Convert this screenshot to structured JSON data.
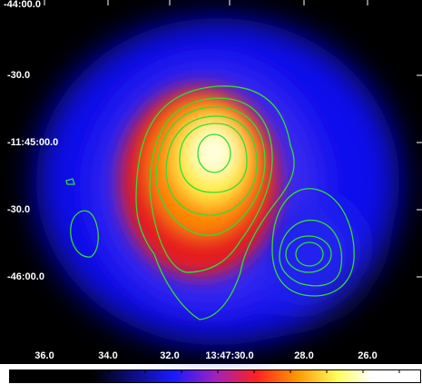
{
  "image": {
    "y_labels": [
      "-44:00.0",
      "-30.0",
      "-11:45:00.0",
      "-30.0",
      "-46:00.0"
    ],
    "x_labels": [
      "36.0",
      "34.0",
      "32.0",
      "13:47:30.0",
      "28.0",
      "26.0"
    ]
  }
}
